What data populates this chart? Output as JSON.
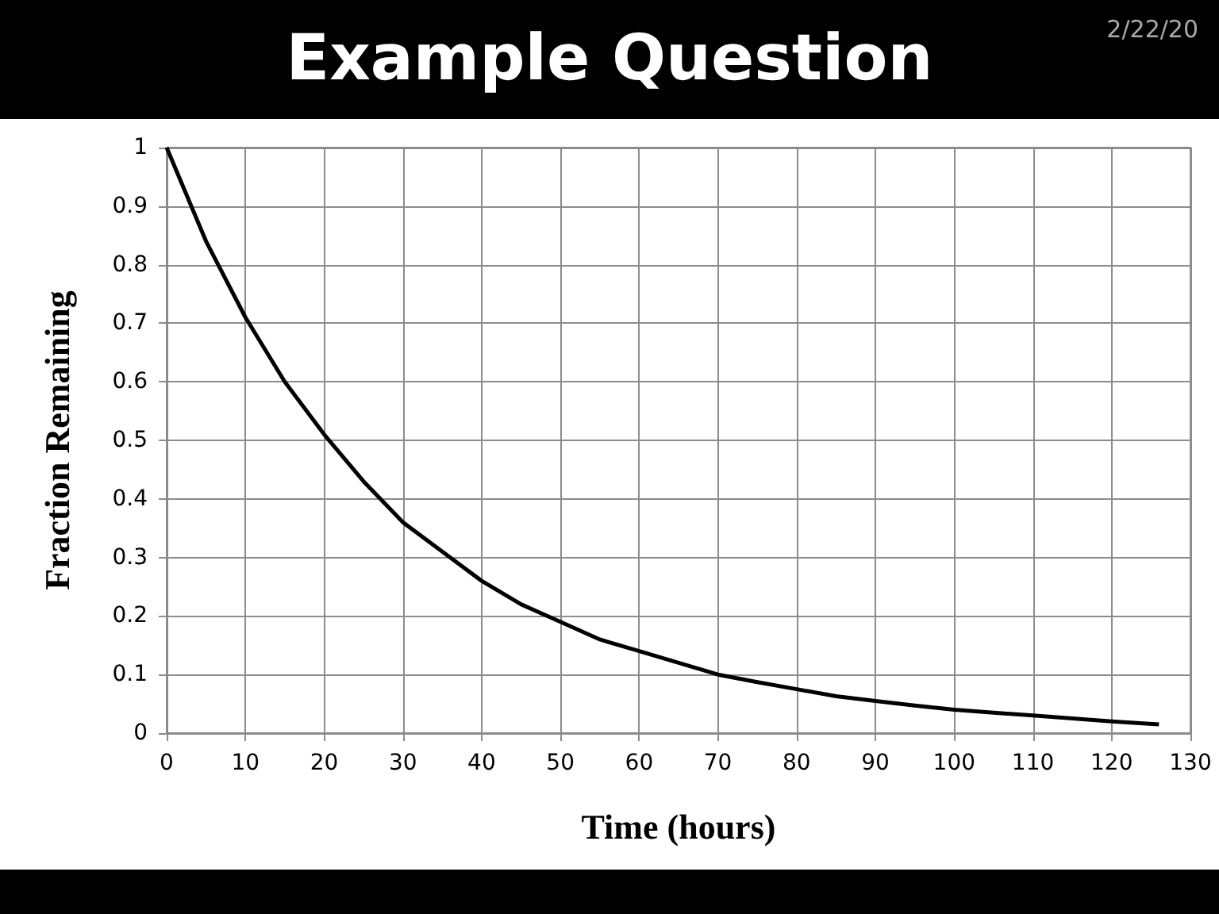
{
  "chart_data": {
    "type": "line",
    "title": "Example Question",
    "annotations": [
      "2/22/20"
    ],
    "xlabel": "Time (hours)",
    "ylabel": "Fraction Remaining",
    "x": [
      0,
      5,
      10,
      15,
      20,
      25,
      30,
      35,
      40,
      45,
      50,
      55,
      60,
      65,
      70,
      75,
      80,
      85,
      90,
      95,
      100,
      105,
      110,
      115,
      120,
      126
    ],
    "series": [
      {
        "color": "#000000",
        "values": [
          1,
          0.84,
          0.71,
          0.6,
          0.51,
          0.43,
          0.36,
          0.31,
          0.26,
          0.22,
          0.19,
          0.16,
          0.14,
          0.12,
          0.1,
          0.087,
          0.075,
          0.063,
          0.055,
          0.047,
          0.04,
          0.035,
          0.03,
          0.025,
          0.02,
          0.015
        ]
      }
    ],
    "xlim": [
      0,
      130
    ],
    "xticks": [
      0,
      10,
      20,
      30,
      40,
      50,
      60,
      70,
      80,
      90,
      100,
      110,
      120,
      130
    ],
    "ylim": [
      0,
      1
    ],
    "yticks": [
      0,
      0.1,
      0.2,
      0.3,
      0.4,
      0.5,
      0.6,
      0.7,
      0.8,
      0.9,
      1
    ],
    "grid": true,
    "marker": "none",
    "line_style": "solid"
  }
}
